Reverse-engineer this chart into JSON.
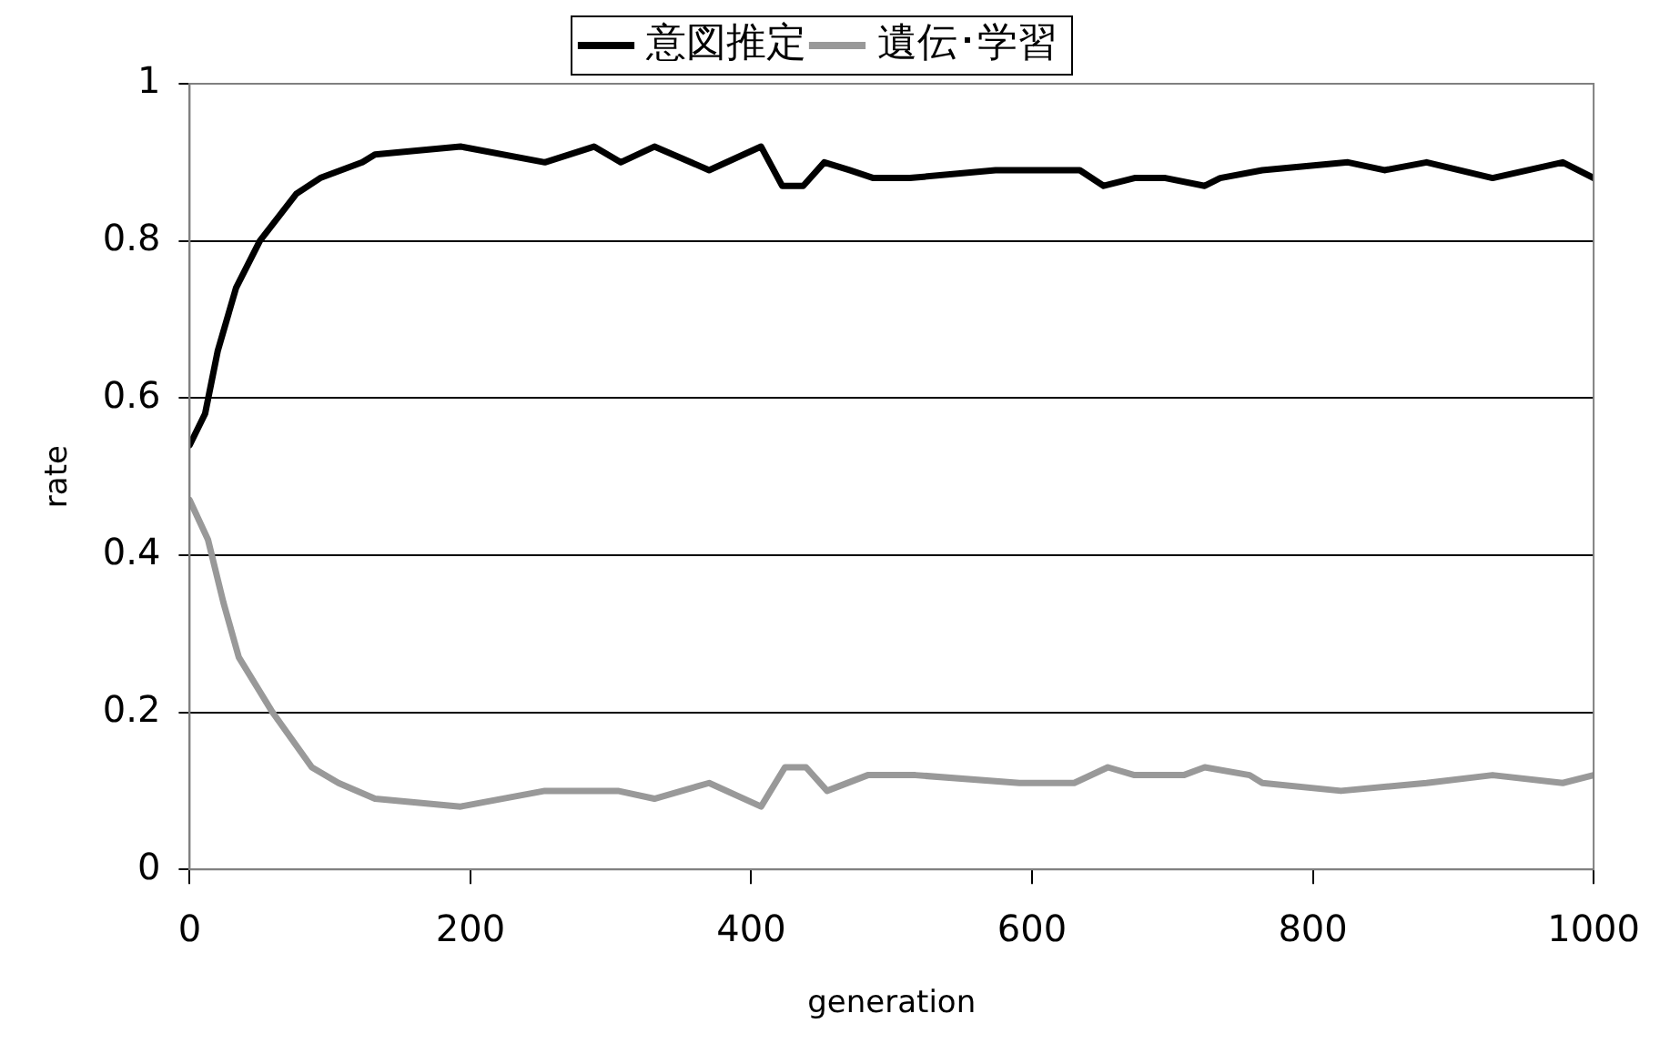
{
  "chart_data": {
    "type": "line",
    "xlabel": "generation",
    "ylabel": "rate",
    "xlim": [
      0,
      1000
    ],
    "xticks": [
      0,
      200,
      400,
      600,
      800,
      1000
    ],
    "ylim": [
      0,
      1
    ],
    "yticks": [
      0,
      0.2,
      0.4,
      0.6,
      0.8,
      1
    ],
    "grid": "y",
    "legend": "top",
    "marker": "none",
    "line_style": "solid",
    "series": [
      {
        "name": "意図推定",
        "color": "#000000",
        "x": [
          0,
          11,
          20,
          33,
          50,
          76,
          93,
          123,
          132,
          193,
          253,
          288,
          307,
          331,
          370,
          407,
          422,
          437,
          452,
          470,
          487,
          513,
          574,
          634,
          651,
          673,
          695,
          723,
          734,
          764,
          825,
          851,
          881,
          928,
          978,
          1000
        ],
        "values": [
          0.54,
          0.58,
          0.66,
          0.74,
          0.8,
          0.86,
          0.88,
          0.9,
          0.91,
          0.92,
          0.9,
          0.92,
          0.9,
          0.92,
          0.89,
          0.92,
          0.87,
          0.87,
          0.9,
          0.89,
          0.88,
          0.88,
          0.89,
          0.89,
          0.87,
          0.88,
          0.88,
          0.87,
          0.88,
          0.89,
          0.9,
          0.89,
          0.9,
          0.88,
          0.9,
          0.88
        ]
      },
      {
        "name": "遺伝･学習",
        "color": "#999999",
        "x": [
          0,
          13,
          24,
          35,
          59,
          87,
          106,
          132,
          193,
          253,
          305,
          331,
          370,
          407,
          424,
          439,
          454,
          483,
          517,
          591,
          630,
          654,
          673,
          708,
          723,
          755,
          764,
          820,
          881,
          928,
          978,
          1000
        ],
        "values": [
          0.47,
          0.42,
          0.34,
          0.27,
          0.2,
          0.13,
          0.11,
          0.09,
          0.08,
          0.1,
          0.1,
          0.09,
          0.11,
          0.08,
          0.13,
          0.13,
          0.1,
          0.12,
          0.12,
          0.11,
          0.11,
          0.13,
          0.12,
          0.12,
          0.13,
          0.12,
          0.11,
          0.1,
          0.11,
          0.12,
          0.11,
          0.12
        ]
      }
    ]
  }
}
